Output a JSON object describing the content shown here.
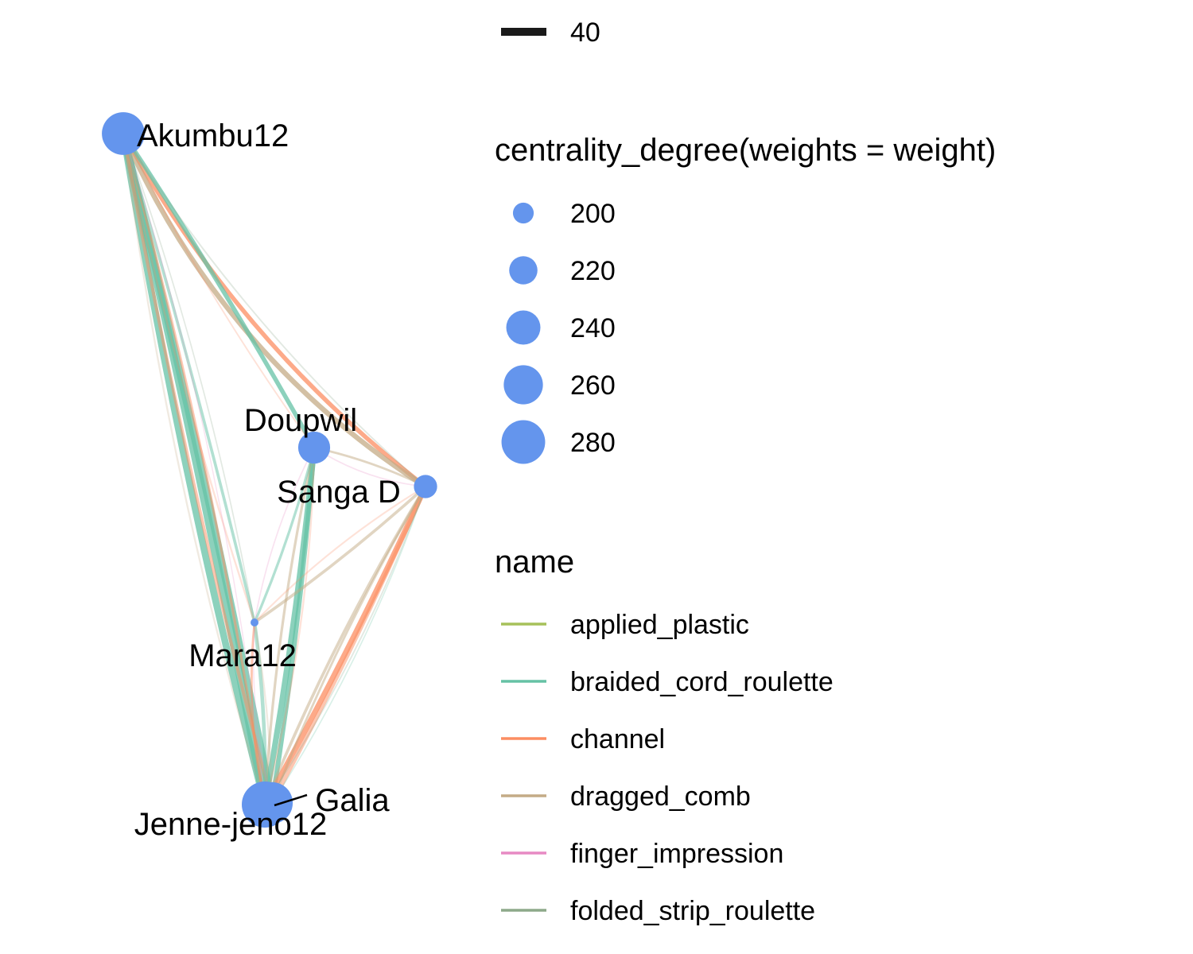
{
  "node_color": "#6495ED",
  "label_color": "#000000",
  "nodes": [
    {
      "id": "akumbu12",
      "name": "Akumbu12",
      "degree": 276
    },
    {
      "id": "doupwil",
      "name": "Doupwil",
      "degree": 232
    },
    {
      "id": "sanga_d",
      "name": "Sanga D",
      "degree": 206
    },
    {
      "id": "mara12",
      "name": "Mara12",
      "degree": 180
    },
    {
      "id": "jenne_jeno12",
      "name": "Jenne-jeno12",
      "degree": 292
    },
    {
      "id": "galia",
      "name": "Galia",
      "degree": 270
    }
  ],
  "edges": [
    {
      "source": "akumbu12",
      "target": "jenne_jeno12",
      "name": "braided_cord_roulette",
      "weight": 40
    },
    {
      "source": "akumbu12",
      "target": "jenne_jeno12",
      "name": "braided_cord_roulette",
      "weight": 34
    },
    {
      "source": "akumbu12",
      "target": "galia",
      "name": "braided_cord_roulette",
      "weight": 36
    },
    {
      "source": "akumbu12",
      "target": "galia",
      "name": "channel",
      "weight": 14
    },
    {
      "source": "akumbu12",
      "target": "jenne_jeno12",
      "name": "channel",
      "weight": 10
    },
    {
      "source": "akumbu12",
      "target": "sanga_d",
      "name": "channel",
      "weight": 20
    },
    {
      "source": "akumbu12",
      "target": "sanga_d",
      "name": "dragged_comb",
      "weight": 24
    },
    {
      "source": "akumbu12",
      "target": "doupwil",
      "name": "braided_cord_roulette",
      "weight": 20
    },
    {
      "source": "akumbu12",
      "target": "mara12",
      "name": "braided_cord_roulette",
      "weight": 12
    },
    {
      "source": "akumbu12",
      "target": "mara12",
      "name": "channel",
      "weight": 6
    },
    {
      "source": "akumbu12",
      "target": "jenne_jeno12",
      "name": "dragged_comb",
      "weight": 6
    },
    {
      "source": "akumbu12",
      "target": "sanga_d",
      "name": "folded_strip_roulette",
      "weight": 4
    },
    {
      "source": "akumbu12",
      "target": "doupwil",
      "name": "channel",
      "weight": 4
    },
    {
      "source": "akumbu12",
      "target": "mara12",
      "name": "folded_strip_roulette",
      "weight": 3
    },
    {
      "source": "akumbu12",
      "target": "jenne_jeno12",
      "name": "finger_impression",
      "weight": 2
    },
    {
      "source": "doupwil",
      "target": "jenne_jeno12",
      "name": "braided_cord_roulette",
      "weight": 28
    },
    {
      "source": "doupwil",
      "target": "galia",
      "name": "braided_cord_roulette",
      "weight": 22
    },
    {
      "source": "doupwil",
      "target": "jenne_jeno12",
      "name": "dragged_comb",
      "weight": 10
    },
    {
      "source": "doupwil",
      "target": "sanga_d",
      "name": "dragged_comb",
      "weight": 8
    },
    {
      "source": "doupwil",
      "target": "sanga_d",
      "name": "finger_impression",
      "weight": 3
    },
    {
      "source": "doupwil",
      "target": "mara12",
      "name": "braided_cord_roulette",
      "weight": 10
    },
    {
      "source": "doupwil",
      "target": "jenne_jeno12",
      "name": "channel",
      "weight": 6
    },
    {
      "source": "doupwil",
      "target": "mara12",
      "name": "finger_impression",
      "weight": 3
    },
    {
      "source": "sanga_d",
      "target": "jenne_jeno12",
      "name": "channel",
      "weight": 26
    },
    {
      "source": "sanga_d",
      "target": "galia",
      "name": "channel",
      "weight": 18
    },
    {
      "source": "sanga_d",
      "target": "jenne_jeno12",
      "name": "dragged_comb",
      "weight": 12
    },
    {
      "source": "sanga_d",
      "target": "galia",
      "name": "dragged_comb",
      "weight": 8
    },
    {
      "source": "sanga_d",
      "target": "mara12",
      "name": "dragged_comb",
      "weight": 12
    },
    {
      "source": "sanga_d",
      "target": "mara12",
      "name": "channel",
      "weight": 5
    },
    {
      "source": "sanga_d",
      "target": "jenne_jeno12",
      "name": "folded_strip_roulette",
      "weight": 4
    },
    {
      "source": "sanga_d",
      "target": "galia",
      "name": "braided_cord_roulette",
      "weight": 3
    },
    {
      "source": "mara12",
      "target": "jenne_jeno12",
      "name": "braided_cord_roulette",
      "weight": 16
    },
    {
      "source": "mara12",
      "target": "jenne_jeno12",
      "name": "channel",
      "weight": 8
    },
    {
      "source": "mara12",
      "target": "galia",
      "name": "dragged_comb",
      "weight": 6
    },
    {
      "source": "mara12",
      "target": "galia",
      "name": "finger_impression",
      "weight": 2
    },
    {
      "source": "jenne_jeno12",
      "target": "galia",
      "name": "braided_cord_roulette",
      "weight": 12
    }
  ],
  "legend": {
    "weight": {
      "entries": [
        {
          "label": "40",
          "value": 40
        }
      ]
    },
    "size": {
      "title": "centrality_degree(weights = weight)",
      "entries": [
        {
          "label": "200",
          "value": 200
        },
        {
          "label": "220",
          "value": 220
        },
        {
          "label": "240",
          "value": 240
        },
        {
          "label": "260",
          "value": 260
        },
        {
          "label": "280",
          "value": 280
        }
      ]
    },
    "color": {
      "title": "name",
      "entries": [
        {
          "label": "applied_plastic",
          "color": "#A6C15A"
        },
        {
          "label": "braided_cord_roulette",
          "color": "#66C2A5"
        },
        {
          "label": "channel",
          "color": "#FC8D62"
        },
        {
          "label": "dragged_comb",
          "color": "#C4AB86"
        },
        {
          "label": "finger_impression",
          "color": "#E78AC3"
        },
        {
          "label": "folded_strip_roulette",
          "color": "#8DA98A"
        }
      ]
    }
  }
}
